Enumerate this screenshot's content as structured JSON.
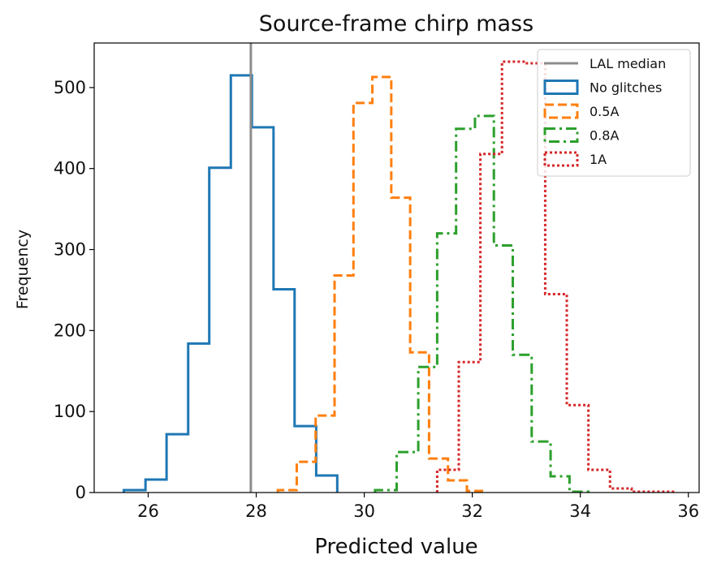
{
  "chart_data": {
    "type": "histogram",
    "title": "Source-frame chirp mass",
    "xlabel": "Predicted value",
    "ylabel": "Frequency",
    "xlim": [
      25,
      36.2
    ],
    "ylim": [
      0,
      555
    ],
    "xticks": [
      26,
      28,
      30,
      32,
      34,
      36
    ],
    "yticks": [
      0,
      100,
      200,
      300,
      400,
      500
    ],
    "reference_line": {
      "name": "LAL median",
      "x": 27.9,
      "color": "#8c8c8c"
    },
    "legend_position": "top-right",
    "series": [
      {
        "name": "No glitches",
        "color": "#1f77b4",
        "style": "solid",
        "edges": [
          25.55,
          25.95,
          26.34,
          26.74,
          27.13,
          27.53,
          27.92,
          28.32,
          28.71,
          29.11,
          29.5
        ],
        "counts": [
          3,
          16,
          72,
          184,
          401,
          515,
          451,
          251,
          82,
          21
        ]
      },
      {
        "name": "0.5A",
        "color": "#ff7f0e",
        "style": "dashed",
        "edges": [
          28.4,
          28.75,
          29.1,
          29.45,
          29.8,
          30.15,
          30.5,
          30.85,
          31.2,
          31.55,
          31.9,
          32.25
        ],
        "counts": [
          3,
          38,
          95,
          268,
          481,
          513,
          364,
          173,
          42,
          15,
          2
        ]
      },
      {
        "name": "0.8A",
        "color": "#2ca02c",
        "style": "dashdot",
        "edges": [
          30.2,
          30.6,
          31.0,
          31.35,
          31.7,
          32.05,
          32.4,
          32.75,
          33.1,
          33.45,
          33.8,
          34.15
        ],
        "counts": [
          3,
          50,
          155,
          320,
          449,
          465,
          305,
          170,
          63,
          20,
          1
        ]
      },
      {
        "name": "1A",
        "color": "#d62728",
        "style": "dotted",
        "edges": [
          31.35,
          31.75,
          32.15,
          32.55,
          32.95,
          33.35,
          33.75,
          34.15,
          34.55,
          34.95,
          35.35,
          35.75
        ],
        "counts": [
          28,
          161,
          418,
          532,
          530,
          245,
          108,
          28,
          5,
          1,
          1
        ]
      }
    ]
  }
}
